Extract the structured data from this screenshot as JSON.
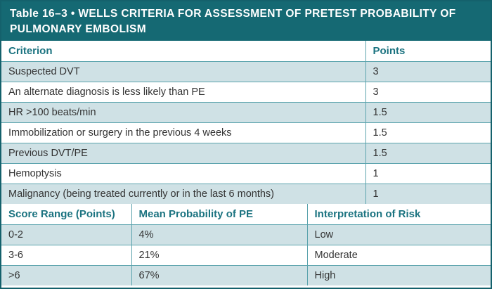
{
  "caption": {
    "label": "Table 16–3",
    "bullet": "•",
    "title": "Wells Criteria for Assessment of Pretest Probability of Pulmonary Embolism"
  },
  "criteria": {
    "headers": {
      "criterion": "Criterion",
      "points": "Points"
    },
    "rows": [
      {
        "criterion": "Suspected DVT",
        "points": "3"
      },
      {
        "criterion": "An alternate diagnosis is less likely than PE",
        "points": "3"
      },
      {
        "criterion": "HR >100 beats/min",
        "points": "1.5"
      },
      {
        "criterion": "Immobilization or surgery in the previous 4 weeks",
        "points": "1.5"
      },
      {
        "criterion": "Previous DVT/PE",
        "points": "1.5"
      },
      {
        "criterion": "Hemoptysis",
        "points": "1"
      },
      {
        "criterion": "Malignancy (being treated currently or in the last 6 months)",
        "points": "1"
      }
    ]
  },
  "risk": {
    "headers": {
      "score": "Score Range (Points)",
      "probability": "Mean Probability of PE",
      "interpretation": "Interpretation of Risk"
    },
    "rows": [
      {
        "score": "0-2",
        "probability": "4%",
        "interpretation": "Low"
      },
      {
        "score": "3-6",
        "probability": "21%",
        "interpretation": "Moderate"
      },
      {
        "score": ">6",
        "probability": "67%",
        "interpretation": "High"
      }
    ]
  },
  "colors": {
    "header-bg": "#156973",
    "header-text": "#ffffff",
    "accent": "#1b7380",
    "row-alt": "#cfe1e5",
    "border": "#5ba3ad",
    "outer-border": "#14616c",
    "text": "#333333"
  }
}
